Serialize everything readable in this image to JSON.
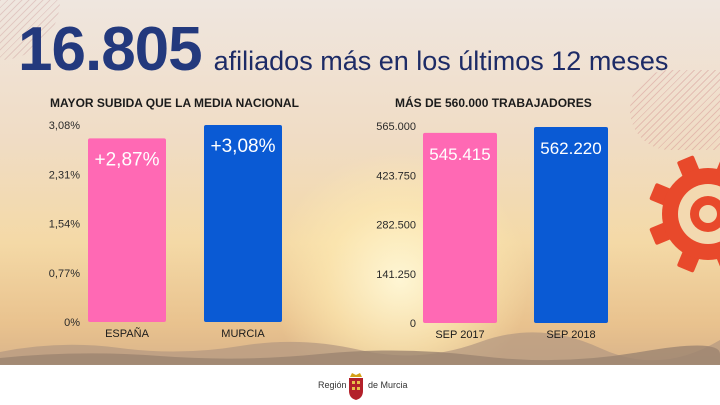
{
  "headline": {
    "number": "16.805",
    "text": "afiliados más en los últimos 12 meses"
  },
  "logo": {
    "left_text": "Región",
    "right_text": "de Murcia"
  },
  "colors": {
    "pink": "#ff69b4",
    "blue": "#0a5ad4",
    "navy": "#23397d",
    "gear": "#e8492b"
  },
  "chart_data": [
    {
      "type": "bar",
      "title": "MAYOR SUBIDA QUE LA MEDIA NACIONAL",
      "categories": [
        "ESPAÑA",
        "MURCIA"
      ],
      "values": [
        2.87,
        3.08
      ],
      "data_labels": [
        "+2,87%",
        "+3,08%"
      ],
      "bar_colors": [
        "#ff69b4",
        "#0a5ad4"
      ],
      "ylim": [
        0,
        3.08
      ],
      "yticks": [
        "0%",
        "0,77%",
        "1,54%",
        "2,31%",
        "3,08%"
      ],
      "grid": false,
      "legend": "none"
    },
    {
      "type": "bar",
      "title": "MÁS DE 560.000 TRABAJADORES",
      "categories": [
        "SEP 2017",
        "SEP 2018"
      ],
      "values": [
        545415,
        562220
      ],
      "data_labels": [
        "545.415",
        "562.220"
      ],
      "bar_colors": [
        "#ff69b4",
        "#0a5ad4"
      ],
      "ylim": [
        0,
        565000
      ],
      "yticks": [
        "0",
        "141.250",
        "282.500",
        "423.750",
        "565.000"
      ],
      "grid": false,
      "legend": "none"
    }
  ]
}
